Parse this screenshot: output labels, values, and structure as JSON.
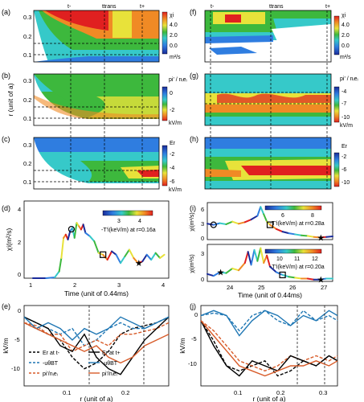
{
  "chart_data": [
    {
      "panel": "(a)",
      "type": "heatmap",
      "quantity": "χi",
      "cbar_unit": "m²/s",
      "cbar_ticks": [
        "4.0",
        "2.0",
        "0.0"
      ],
      "ylabel": "r (unit of a)",
      "yticks": [
        "0.3",
        "0.2",
        "0.1"
      ],
      "top_labels": [
        "t-",
        "ttrans",
        "t+"
      ],
      "colors": [
        "#1a2b9a",
        "#2f7de0",
        "#36c9c9",
        "#3db83d",
        "#e8e23a",
        "#f08a25",
        "#e02020"
      ]
    },
    {
      "panel": "(b)",
      "type": "heatmap",
      "quantity": "pi' / nᵢeᵢ",
      "cbar_unit": "kV/m",
      "cbar_ticks": [
        "0",
        "-2"
      ],
      "ylabel": "r (unit of a)",
      "yticks": [
        "0.3",
        "0.2",
        "0.1"
      ]
    },
    {
      "panel": "(c)",
      "type": "heatmap",
      "quantity": "Er",
      "cbar_unit": "kV/m",
      "cbar_ticks": [
        "-2",
        "-4",
        "-6"
      ],
      "ylabel": "r (unit of a)",
      "yticks": [
        "0.3",
        "0.2",
        "0.1"
      ]
    },
    {
      "panel": "(d)",
      "type": "line",
      "ylabel": "χi(m²/s)",
      "xlabel": "Time (unit of 0.44ms)",
      "xticks": [
        "1",
        "2",
        "3",
        "4"
      ],
      "yticks": [
        "4",
        "2",
        "0"
      ],
      "xlim": [
        0.8,
        4.1
      ],
      "ylim": [
        0,
        4.6
      ],
      "x": [
        1.0,
        1.3,
        1.5,
        1.6,
        1.65,
        1.7,
        1.75,
        1.8,
        1.85,
        1.9,
        1.95,
        2.0,
        2.05,
        2.1,
        2.15,
        2.2,
        2.3,
        2.4,
        2.5,
        2.6,
        2.7,
        2.8,
        2.9,
        3.0,
        3.1,
        3.2,
        3.3,
        3.4,
        3.5,
        3.6,
        3.7,
        3.8,
        3.9,
        4.0
      ],
      "values": [
        0.0,
        0.0,
        0.05,
        0.4,
        1.2,
        2.4,
        2.6,
        2.3,
        2.8,
        3.0,
        2.4,
        3.3,
        3.1,
        2.9,
        3.2,
        2.7,
        2.5,
        2.2,
        1.5,
        1.4,
        1.1,
        1.6,
        1.4,
        0.9,
        1.3,
        1.7,
        1.2,
        0.9,
        1.0,
        1.4,
        1.1,
        1.5,
        1.2,
        1.4
      ],
      "markers": [
        {
          "shape": "circle",
          "x": 1.88
        },
        {
          "shape": "square",
          "x": 2.6
        },
        {
          "shape": "star",
          "x": 3.4
        }
      ],
      "colorbar_label": "-T'i(keV/m) at r=0.16a",
      "colorbar_ticks": [
        "3",
        "4"
      ]
    },
    {
      "panel": "(e)",
      "type": "line",
      "ylabel": "kV/m",
      "xlabel": "r (unit of a)",
      "xticks": [
        "0.1",
        "0.2"
      ],
      "yticks": [
        "0",
        "-5",
        "-10"
      ],
      "xlim": [
        0.03,
        0.27
      ],
      "ylim": [
        -12,
        2
      ],
      "x": [
        0.03,
        0.05,
        0.07,
        0.09,
        0.11,
        0.13,
        0.15,
        0.17,
        0.19,
        0.21,
        0.23,
        0.25,
        0.27
      ],
      "series": [
        {
          "name": "Er at t-",
          "style": "dashed",
          "color": "#000000",
          "values": [
            -1,
            -2,
            -3,
            -4,
            -7,
            -9,
            -8,
            -6,
            -3,
            -2,
            -1.5,
            -1,
            0
          ]
        },
        {
          "name": "-uθBT",
          "style": "dashed",
          "color": "#1f77b4",
          "values": [
            0,
            -1,
            -2,
            -3,
            -2,
            -5,
            -4,
            -2,
            -1,
            -2,
            -2,
            -1,
            0
          ]
        },
        {
          "name": "pi'/nᵢeᵢ",
          "style": "dashed",
          "color": "#d85c2a",
          "values": [
            -1,
            -1.5,
            -3,
            -3,
            -6,
            -5,
            -4,
            -5,
            -3,
            -3,
            -2.5,
            -2,
            -1
          ]
        },
        {
          "name": "Er at t+",
          "style": "solid",
          "color": "#000000",
          "values": [
            0,
            -1,
            -2,
            -5,
            -6,
            -3,
            -7,
            -9,
            -10,
            -7,
            -4,
            -2,
            0
          ]
        },
        {
          "name": "-uθBT",
          "style": "solid",
          "color": "#1f77b4",
          "values": [
            0,
            -2,
            -1,
            -2,
            -4,
            -2,
            -3,
            -2,
            0,
            -1,
            -2,
            -1,
            0
          ]
        },
        {
          "name": "pi'/nᵢeᵢ",
          "style": "solid",
          "color": "#d85c2a",
          "values": [
            -1,
            -2,
            -3,
            -4,
            -5,
            -6,
            -5,
            -7,
            -8,
            -7,
            -5,
            -4,
            -3
          ]
        }
      ]
    },
    {
      "panel": "(f)",
      "type": "heatmap",
      "quantity": "χi",
      "cbar_unit": "m²/s",
      "cbar_ticks": [
        "4.0",
        "2.0",
        "0.0"
      ],
      "top_labels": [
        "t-",
        "ttrans",
        "t+"
      ]
    },
    {
      "panel": "(g)",
      "type": "heatmap",
      "quantity": "pi' / nᵢeᵢ",
      "cbar_unit": "kV/m",
      "cbar_ticks": [
        "-4",
        "-7",
        "-10"
      ]
    },
    {
      "panel": "(h)",
      "type": "heatmap",
      "quantity": "Er",
      "cbar_unit": "kV/m",
      "cbar_ticks": [
        "-2",
        "-6",
        "-10"
      ]
    },
    {
      "panel": "(i)",
      "type": "line",
      "xlabel": "Time (unit of 0.44ms)",
      "xticks": [
        "24",
        "25",
        "26",
        "27"
      ],
      "xlim": [
        23.4,
        27.4
      ],
      "subplots": [
        {
          "ylabel": "χi(m²/s)",
          "yticks": [
            "6",
            "3",
            "0"
          ],
          "ylim": [
            0,
            7
          ],
          "x": [
            23.4,
            23.6,
            23.8,
            24.0,
            24.2,
            24.4,
            24.6,
            24.8,
            25.0,
            25.1,
            25.2,
            25.3,
            25.4,
            25.6,
            25.8,
            26.0,
            26.2,
            26.4,
            26.6,
            26.8,
            27.0,
            27.2,
            27.4
          ],
          "values": [
            3.0,
            2.8,
            3.1,
            2.9,
            3.4,
            3.0,
            3.3,
            3.8,
            4.5,
            6.2,
            4.8,
            3.4,
            2.8,
            2.0,
            1.5,
            1.2,
            1.0,
            0.8,
            0.7,
            0.5,
            0.4,
            0.5,
            0.6
          ],
          "markers": [
            {
              "shape": "circle",
              "x": 23.6
            },
            {
              "shape": "square",
              "x": 25.4
            },
            {
              "shape": "star",
              "x": 27.0
            }
          ],
          "colorbar_label": "-T'i(keV/m) at r=0.28a",
          "colorbar_ticks": [
            "6",
            "8"
          ]
        },
        {
          "ylabel": "χi(m²/s)",
          "yticks": [
            "3",
            "0"
          ],
          "ylim": [
            0,
            4
          ],
          "x": [
            23.4,
            23.6,
            23.8,
            24.0,
            24.2,
            24.4,
            24.6,
            24.7,
            24.8,
            24.9,
            25.0,
            25.1,
            25.2,
            25.3,
            25.4,
            25.6,
            25.8,
            26.0,
            26.2,
            26.4,
            26.6,
            26.8,
            27.0,
            27.2,
            27.4
          ],
          "values": [
            0.8,
            0.6,
            1.0,
            0.9,
            1.4,
            1.2,
            2.0,
            3.2,
            1.8,
            3.4,
            2.2,
            3.6,
            2.0,
            2.8,
            1.6,
            1.0,
            0.7,
            0.5,
            0.4,
            0.3,
            0.3,
            0.2,
            0.2,
            0.3,
            0.3
          ],
          "markers": [
            {
              "shape": "star",
              "x": 23.8
            },
            {
              "shape": "square",
              "x": 25.8
            },
            {
              "shape": "star",
              "x": 27.0
            }
          ],
          "colorbar_label": "-T'i(keV/m) at r=0.20a",
          "colorbar_ticks": [
            "10",
            "11",
            "12"
          ]
        }
      ]
    },
    {
      "panel": "(j)",
      "type": "line",
      "ylabel": "kV/m",
      "xlabel": "r (unit of a)",
      "xticks": [
        "0.1",
        "0.2",
        "0.3"
      ],
      "yticks": [
        "0",
        "-5",
        "-10"
      ],
      "xlim": [
        0.02,
        0.34
      ],
      "ylim": [
        -14,
        2
      ],
      "x": [
        0.02,
        0.05,
        0.08,
        0.11,
        0.14,
        0.17,
        0.2,
        0.23,
        0.26,
        0.29,
        0.32,
        0.34
      ],
      "series": [
        {
          "style": "dashed",
          "color": "#000000",
          "values": [
            -1,
            -5,
            -10,
            -11,
            -10,
            -9,
            -12,
            -11,
            -9,
            -10,
            -8,
            -9
          ]
        },
        {
          "style": "dashed",
          "color": "#1f77b4",
          "values": [
            0,
            0.5,
            0,
            -3,
            0,
            1,
            -1,
            -2,
            1,
            -1,
            0,
            -1
          ]
        },
        {
          "style": "dashed",
          "color": "#d85c2a",
          "values": [
            -1,
            -3,
            -6,
            -9,
            -10,
            -11,
            -10,
            -8,
            -9,
            -8,
            -9,
            -8
          ]
        },
        {
          "style": "solid",
          "color": "#000000",
          "values": [
            -1,
            -6,
            -10,
            -12,
            -9,
            -10,
            -11,
            -8,
            -9,
            -10,
            -8,
            -9
          ]
        },
        {
          "style": "solid",
          "color": "#1f77b4",
          "values": [
            0,
            1,
            0,
            -4,
            -1,
            1,
            0,
            -2,
            0,
            -1,
            1,
            0
          ]
        },
        {
          "style": "solid",
          "color": "#d85c2a",
          "values": [
            -1,
            -4,
            -7,
            -10,
            -11,
            -12,
            -11,
            -10,
            -10,
            -9,
            -10,
            -9
          ]
        }
      ]
    }
  ]
}
